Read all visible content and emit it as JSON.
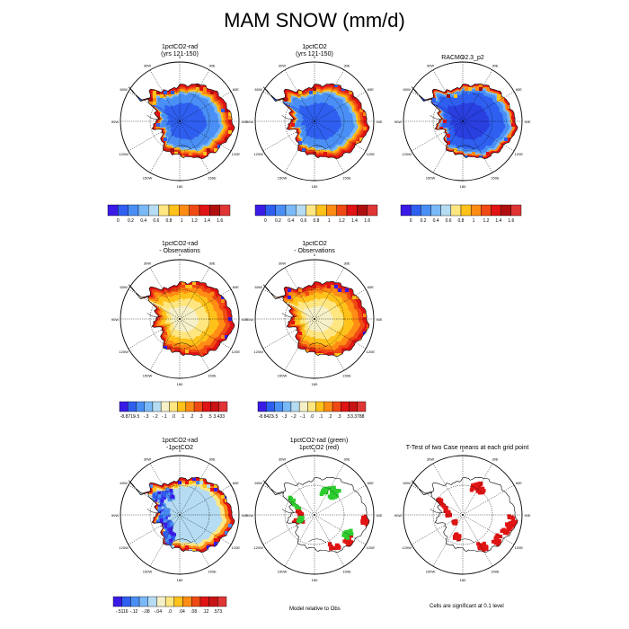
{
  "title": "MAM SNOW (mm/d)",
  "palettes": {
    "abs": [
      "#3a1be6",
      "#2f5ff0",
      "#4a8ff5",
      "#7ab9f7",
      "#b5dcf2",
      "#ffe680",
      "#ffc21a",
      "#ff8c14",
      "#f04a14",
      "#e01414",
      "#b00f0f",
      "#e03535"
    ],
    "diff": [
      "#3a1be6",
      "#2f5ff0",
      "#4a8ff5",
      "#7ab9f7",
      "#b5dcf2",
      "#f5f0c8",
      "#ffe680",
      "#ffc21a",
      "#ff8c14",
      "#f04a14",
      "#e01414",
      "#c81414",
      "#e03535"
    ]
  },
  "lon_labels": [
    "0",
    "30E",
    "60E",
    "90E",
    "120E",
    "150E",
    "180",
    "150W",
    "120W",
    "90W",
    "60W",
    "30W"
  ],
  "panels": [
    {
      "id": "p1",
      "title": [
        "1pctCO2-rad",
        "(yrs 121-150)"
      ],
      "kind": "abs"
    },
    {
      "id": "p2",
      "title": [
        "1pctCO2",
        "(yrs 121-150)"
      ],
      "kind": "abs"
    },
    {
      "id": "p3",
      "title": [
        "RACMO2.3_p2"
      ],
      "kind": "racmo"
    },
    {
      "id": "p4",
      "title": [
        "1pctCO2-rad",
        "- Observations"
      ],
      "kind": "diffobs"
    },
    {
      "id": "p5",
      "title": [
        "1pctCO2",
        "- Observations"
      ],
      "kind": "diffobs"
    },
    {
      "id": "p6",
      "title": [
        "1pctCO2-rad",
        "-1pctCO2"
      ],
      "kind": "diffmodel"
    },
    {
      "id": "p7",
      "title": [
        "1pctCO2-rad (green)",
        "1pctCO2 (red)"
      ],
      "kind": "sig2"
    },
    {
      "id": "p8",
      "title": [
        "T-Test of two Case means at each grid point"
      ],
      "kind": "ttest"
    }
  ],
  "colorbars": [
    {
      "id": "cb1",
      "kind": "abs",
      "labels": [
        "0",
        "0.2",
        "0.4",
        "0.6",
        "0.8",
        "1",
        "1.2",
        "1.4",
        "1.6"
      ]
    },
    {
      "id": "cb2",
      "kind": "abs",
      "labels": [
        "0",
        "0.2",
        "0.4",
        "0.6",
        "0.8",
        "1",
        "1.2",
        "1.4",
        "1.6"
      ]
    },
    {
      "id": "cb3",
      "kind": "abs",
      "labels": [
        "0",
        "0.2",
        "0.4",
        "0.6",
        "0.8",
        "1",
        "1.2",
        "1.4",
        "1.6"
      ]
    },
    {
      "id": "cb4",
      "kind": "diff",
      "labels": [
        "-8.8719",
        "-.5",
        "-.3",
        "-.2",
        "-.1",
        ".0",
        ".1",
        ".2",
        ".3",
        ".5",
        "3.433"
      ]
    },
    {
      "id": "cb5",
      "kind": "diff",
      "labels": [
        "-8.8423",
        "-.5",
        "-.3",
        "-.2",
        "-.1",
        ".0",
        ".1",
        ".2",
        ".3",
        ".5",
        "3.3788"
      ]
    },
    {
      "id": "cb6",
      "kind": "diff",
      "labels": [
        "-.5116",
        "-.12",
        "-.08",
        "-.04",
        ".0",
        ".04",
        ".08",
        ".12",
        ".573"
      ]
    }
  ],
  "notes": {
    "model_relative": "Model relative to Obs",
    "significance": "Cells are significant at 0.1 level"
  }
}
